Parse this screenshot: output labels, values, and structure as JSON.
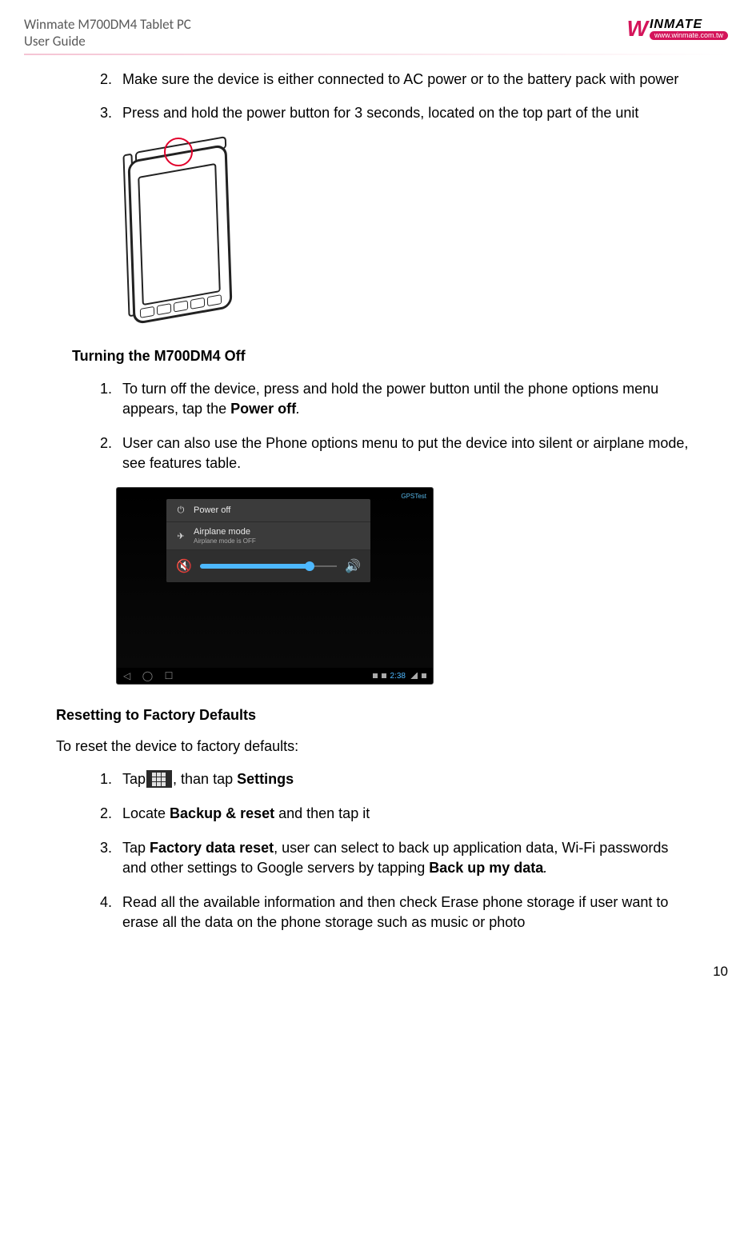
{
  "header": {
    "title_line1": "Winmate M700DM4 Tablet PC",
    "title_line2": "User Guide",
    "logo_name": "INMATE",
    "logo_url": "www.winmate.com.tw"
  },
  "list1": {
    "start": 2,
    "item2": "Make sure the device is either connected to AC power or to the battery pack with power",
    "item3": "Press and hold the power button for 3 seconds, located on the top part of the unit"
  },
  "section2_heading": "Turning the M700DM4 Off",
  "list2": {
    "item1_pre": "To turn off the device, press and hold the power button until the phone options menu appears, tap the ",
    "item1_bold": "Power off",
    "item1_post": ".",
    "item2": "User can also use the Phone options menu to put the device into silent or airplane mode, see features table."
  },
  "screenshot": {
    "gpslabel": "GPSTest",
    "row1": "Power off",
    "row2": "Airplane mode",
    "row2_sub": "Airplane mode is OFF",
    "time": "2:38"
  },
  "section3_heading": "Resetting to Factory Defaults",
  "section3_preamble": "To reset the device to factory defaults:",
  "list3": {
    "item1_pre": "Tap",
    "item1_mid": ", than tap ",
    "item1_bold": "Settings",
    "item2_pre": "Locate ",
    "item2_bold": "Backup & reset",
    "item2_post": " and then tap it",
    "item3_pre": "Tap ",
    "item3_bold1": "Factory data reset",
    "item3_mid": ", user can select to back up application data, Wi-Fi passwords and other settings to Google servers by tapping ",
    "item3_bold2": "Back up my data",
    "item3_post": ".",
    "item4": "Read all the available information and then check Erase phone storage if user want  to erase all the data on the phone storage such as music or photo"
  },
  "page_number": "10"
}
